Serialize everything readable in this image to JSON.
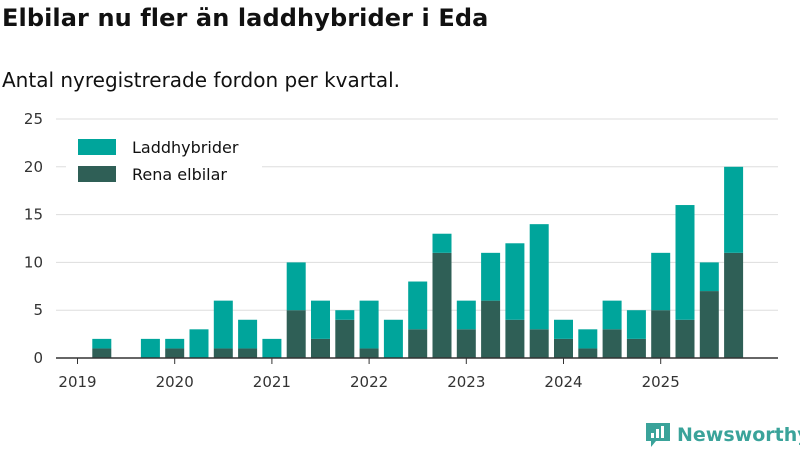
{
  "header": {
    "title": "Elbilar nu fler än laddhybrider i Eda",
    "subtitle": "Antal nyregistrerade fordon per kvartal."
  },
  "brand": {
    "name": "Newsworthy"
  },
  "colors": {
    "hybrid": "#00a59b",
    "electric": "#2f5f56",
    "grid": "#dddddd",
    "axis": "#333333"
  },
  "chart_data": {
    "type": "bar",
    "stacked": true,
    "title": "Elbilar nu fler än laddhybrider i Eda",
    "subtitle": "Antal nyregistrerade fordon per kvartal.",
    "xlabel": "",
    "ylabel": "",
    "ylim": [
      0,
      25
    ],
    "yticks": [
      0,
      5,
      10,
      15,
      20,
      25
    ],
    "grid": true,
    "legend_position": "top-left",
    "categories": [
      "2019Q1",
      "2019Q2",
      "2019Q3",
      "2019Q4",
      "2020Q1",
      "2020Q2",
      "2020Q3",
      "2020Q4",
      "2021Q1",
      "2021Q2",
      "2021Q3",
      "2021Q4",
      "2022Q1",
      "2022Q2",
      "2022Q3",
      "2022Q4",
      "2023Q1",
      "2023Q2",
      "2023Q3",
      "2023Q4",
      "2024Q1",
      "2024Q2",
      "2024Q3",
      "2024Q4",
      "2025Q1",
      "2025Q2",
      "2025Q3",
      "2025Q4"
    ],
    "x_tick_labels": [
      {
        "label": "2019",
        "index": 0
      },
      {
        "label": "2020",
        "index": 4
      },
      {
        "label": "2021",
        "index": 8
      },
      {
        "label": "2022",
        "index": 12
      },
      {
        "label": "2023",
        "index": 16
      },
      {
        "label": "2024",
        "index": 20
      },
      {
        "label": "2025",
        "index": 24
      }
    ],
    "series": [
      {
        "name": "Rena elbilar",
        "color": "#2f5f56",
        "values": [
          0,
          1,
          0,
          0,
          1,
          0,
          1,
          1,
          0,
          5,
          2,
          4,
          1,
          0,
          3,
          11,
          3,
          6,
          4,
          3,
          2,
          1,
          3,
          2,
          5,
          4,
          7,
          11
        ]
      },
      {
        "name": "Laddhybrider",
        "color": "#00a59b",
        "values": [
          0,
          1,
          0,
          2,
          1,
          3,
          5,
          3,
          2,
          5,
          4,
          1,
          5,
          4,
          5,
          2,
          3,
          5,
          8,
          11,
          2,
          2,
          3,
          3,
          6,
          12,
          3,
          9
        ]
      }
    ],
    "legend": [
      "Laddhybrider",
      "Rena elbilar"
    ]
  }
}
